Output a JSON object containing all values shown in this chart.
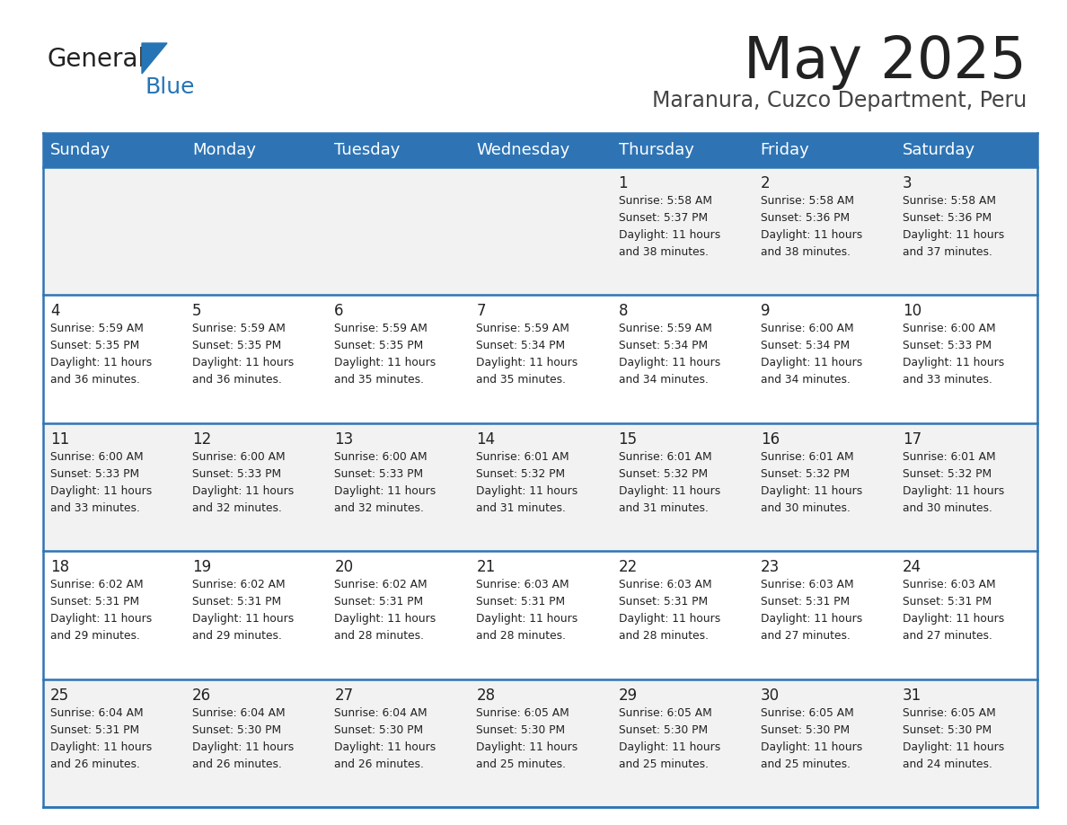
{
  "title": "May 2025",
  "subtitle": "Maranura, Cuzco Department, Peru",
  "header_bg": "#2E74B5",
  "header_text_color": "#FFFFFF",
  "row_bg_odd": "#F2F2F2",
  "row_bg_even": "#FFFFFF",
  "day_names": [
    "Sunday",
    "Monday",
    "Tuesday",
    "Wednesday",
    "Thursday",
    "Friday",
    "Saturday"
  ],
  "cell_text_color": "#222222",
  "border_color": "#2E74B5",
  "logo_general_color": "#222222",
  "logo_blue_color": "#2574B5",
  "logo_triangle_color": "#2574B5",
  "title_color": "#222222",
  "subtitle_color": "#444444",
  "days": [
    {
      "day": 1,
      "col": 4,
      "row": 0,
      "sunrise": "5:58 AM",
      "sunset": "5:37 PM",
      "daylight": "11 hours and 38 minutes."
    },
    {
      "day": 2,
      "col": 5,
      "row": 0,
      "sunrise": "5:58 AM",
      "sunset": "5:36 PM",
      "daylight": "11 hours and 38 minutes."
    },
    {
      "day": 3,
      "col": 6,
      "row": 0,
      "sunrise": "5:58 AM",
      "sunset": "5:36 PM",
      "daylight": "11 hours and 37 minutes."
    },
    {
      "day": 4,
      "col": 0,
      "row": 1,
      "sunrise": "5:59 AM",
      "sunset": "5:35 PM",
      "daylight": "11 hours and 36 minutes."
    },
    {
      "day": 5,
      "col": 1,
      "row": 1,
      "sunrise": "5:59 AM",
      "sunset": "5:35 PM",
      "daylight": "11 hours and 36 minutes."
    },
    {
      "day": 6,
      "col": 2,
      "row": 1,
      "sunrise": "5:59 AM",
      "sunset": "5:35 PM",
      "daylight": "11 hours and 35 minutes."
    },
    {
      "day": 7,
      "col": 3,
      "row": 1,
      "sunrise": "5:59 AM",
      "sunset": "5:34 PM",
      "daylight": "11 hours and 35 minutes."
    },
    {
      "day": 8,
      "col": 4,
      "row": 1,
      "sunrise": "5:59 AM",
      "sunset": "5:34 PM",
      "daylight": "11 hours and 34 minutes."
    },
    {
      "day": 9,
      "col": 5,
      "row": 1,
      "sunrise": "6:00 AM",
      "sunset": "5:34 PM",
      "daylight": "11 hours and 34 minutes."
    },
    {
      "day": 10,
      "col": 6,
      "row": 1,
      "sunrise": "6:00 AM",
      "sunset": "5:33 PM",
      "daylight": "11 hours and 33 minutes."
    },
    {
      "day": 11,
      "col": 0,
      "row": 2,
      "sunrise": "6:00 AM",
      "sunset": "5:33 PM",
      "daylight": "11 hours and 33 minutes."
    },
    {
      "day": 12,
      "col": 1,
      "row": 2,
      "sunrise": "6:00 AM",
      "sunset": "5:33 PM",
      "daylight": "11 hours and 32 minutes."
    },
    {
      "day": 13,
      "col": 2,
      "row": 2,
      "sunrise": "6:00 AM",
      "sunset": "5:33 PM",
      "daylight": "11 hours and 32 minutes."
    },
    {
      "day": 14,
      "col": 3,
      "row": 2,
      "sunrise": "6:01 AM",
      "sunset": "5:32 PM",
      "daylight": "11 hours and 31 minutes."
    },
    {
      "day": 15,
      "col": 4,
      "row": 2,
      "sunrise": "6:01 AM",
      "sunset": "5:32 PM",
      "daylight": "11 hours and 31 minutes."
    },
    {
      "day": 16,
      "col": 5,
      "row": 2,
      "sunrise": "6:01 AM",
      "sunset": "5:32 PM",
      "daylight": "11 hours and 30 minutes."
    },
    {
      "day": 17,
      "col": 6,
      "row": 2,
      "sunrise": "6:01 AM",
      "sunset": "5:32 PM",
      "daylight": "11 hours and 30 minutes."
    },
    {
      "day": 18,
      "col": 0,
      "row": 3,
      "sunrise": "6:02 AM",
      "sunset": "5:31 PM",
      "daylight": "11 hours and 29 minutes."
    },
    {
      "day": 19,
      "col": 1,
      "row": 3,
      "sunrise": "6:02 AM",
      "sunset": "5:31 PM",
      "daylight": "11 hours and 29 minutes."
    },
    {
      "day": 20,
      "col": 2,
      "row": 3,
      "sunrise": "6:02 AM",
      "sunset": "5:31 PM",
      "daylight": "11 hours and 28 minutes."
    },
    {
      "day": 21,
      "col": 3,
      "row": 3,
      "sunrise": "6:03 AM",
      "sunset": "5:31 PM",
      "daylight": "11 hours and 28 minutes."
    },
    {
      "day": 22,
      "col": 4,
      "row": 3,
      "sunrise": "6:03 AM",
      "sunset": "5:31 PM",
      "daylight": "11 hours and 28 minutes."
    },
    {
      "day": 23,
      "col": 5,
      "row": 3,
      "sunrise": "6:03 AM",
      "sunset": "5:31 PM",
      "daylight": "11 hours and 27 minutes."
    },
    {
      "day": 24,
      "col": 6,
      "row": 3,
      "sunrise": "6:03 AM",
      "sunset": "5:31 PM",
      "daylight": "11 hours and 27 minutes."
    },
    {
      "day": 25,
      "col": 0,
      "row": 4,
      "sunrise": "6:04 AM",
      "sunset": "5:31 PM",
      "daylight": "11 hours and 26 minutes."
    },
    {
      "day": 26,
      "col": 1,
      "row": 4,
      "sunrise": "6:04 AM",
      "sunset": "5:30 PM",
      "daylight": "11 hours and 26 minutes."
    },
    {
      "day": 27,
      "col": 2,
      "row": 4,
      "sunrise": "6:04 AM",
      "sunset": "5:30 PM",
      "daylight": "11 hours and 26 minutes."
    },
    {
      "day": 28,
      "col": 3,
      "row": 4,
      "sunrise": "6:05 AM",
      "sunset": "5:30 PM",
      "daylight": "11 hours and 25 minutes."
    },
    {
      "day": 29,
      "col": 4,
      "row": 4,
      "sunrise": "6:05 AM",
      "sunset": "5:30 PM",
      "daylight": "11 hours and 25 minutes."
    },
    {
      "day": 30,
      "col": 5,
      "row": 4,
      "sunrise": "6:05 AM",
      "sunset": "5:30 PM",
      "daylight": "11 hours and 25 minutes."
    },
    {
      "day": 31,
      "col": 6,
      "row": 4,
      "sunrise": "6:05 AM",
      "sunset": "5:30 PM",
      "daylight": "11 hours and 24 minutes."
    }
  ]
}
